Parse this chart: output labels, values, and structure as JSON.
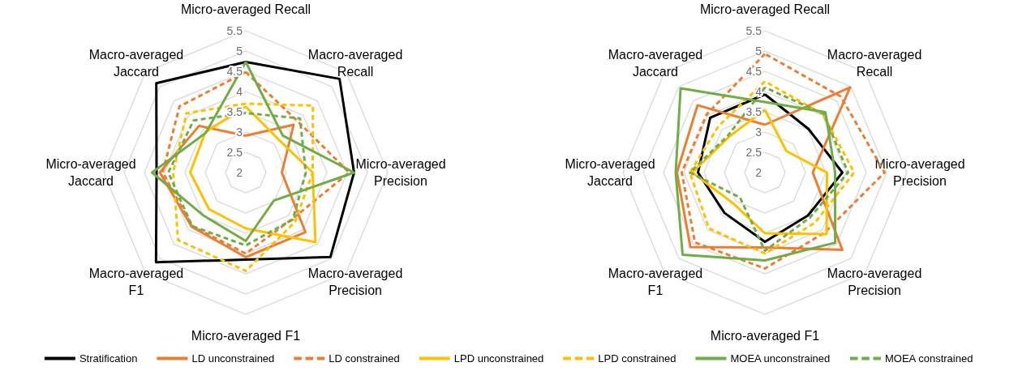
{
  "chart_data": [
    {
      "type": "radar",
      "categories": [
        "Micro-averaged Recall",
        "Macro-averaged Recall",
        "Micro-averaged Precision",
        "Macro-averaged Precision",
        "Micro-averaged F1",
        "Macro-averaged F1",
        "Micro-averaged Jaccard",
        "Macro-averaged Jaccard"
      ],
      "ylim": [
        2,
        5.5
      ],
      "yticks": [
        2,
        2.5,
        3,
        3.5,
        4,
        4.5,
        5,
        5.5
      ],
      "grid": true,
      "legend": "bottom",
      "marker": "none",
      "series": [
        {
          "name": "Stratification",
          "color": "#000000",
          "line_style": "solid",
          "values": [
            4.73,
            5.27,
            4.67,
            4.95,
            4.15,
            5.13,
            4.2,
            5.12
          ]
        },
        {
          "name": "LD unconstrained",
          "color": "#ed7d31",
          "line_style": "solid",
          "values": [
            2.91,
            3.67,
            2.89,
            4.08,
            4.09,
            3.89,
            4.12,
            3.63
          ]
        },
        {
          "name": "LD constrained",
          "color": "#ed7d31",
          "line_style": "dashed",
          "values": [
            4.48,
            3.8,
            4.55,
            3.62,
            4.0,
            3.87,
            4.05,
            4.31
          ]
        },
        {
          "name": "LPD unconstrained",
          "color": "#ffc000",
          "line_style": "solid",
          "values": [
            3.63,
            3.15,
            3.65,
            4.43,
            3.38,
            3.28,
            3.37,
            3.41
          ]
        },
        {
          "name": "LPD constrained",
          "color": "#ffc000",
          "line_style": "dashed",
          "values": [
            3.7,
            4.34,
            3.65,
            3.72,
            4.43,
            4.36,
            3.79,
            4.07
          ]
        },
        {
          "name": "MOEA unconstrained",
          "color": "#70ad47",
          "line_style": "solid",
          "values": [
            4.73,
            3.29,
            4.67,
            2.98,
            3.69,
            3.49,
            4.31,
            3.39
          ]
        },
        {
          "name": "MOEA constrained",
          "color": "#70ad47",
          "line_style": "dashed",
          "values": [
            3.47,
            3.89,
            3.48,
            3.64,
            3.8,
            3.87,
            3.91,
            3.82
          ]
        }
      ]
    },
    {
      "type": "radar",
      "categories": [
        "Micro-averaged Recall",
        "Macro-averaged Recall",
        "Micro-averaged Precision",
        "Macro-averaged Precision",
        "Micro-averaged F1",
        "Macro-averaged F1",
        "Micro-averaged Jaccard",
        "Macro-averaged Jaccard"
      ],
      "ylim": [
        2,
        5.5
      ],
      "yticks": [
        2,
        2.5,
        3,
        3.5,
        4,
        4.5,
        5,
        5.5
      ],
      "grid": true,
      "legend": "bottom",
      "marker": "none",
      "series": [
        {
          "name": "Stratification",
          "color": "#000000",
          "line_style": "solid",
          "values": [
            3.93,
            3.52,
            3.91,
            3.5,
            3.71,
            3.41,
            3.65,
            3.91
          ]
        },
        {
          "name": "LD unconstrained",
          "color": "#ed7d31",
          "line_style": "solid",
          "values": [
            3.18,
            4.97,
            3.18,
            4.7,
            3.85,
            4.6,
            4.17,
            4.35
          ]
        },
        {
          "name": "LD constrained",
          "color": "#ed7d31",
          "line_style": "dashed",
          "values": [
            4.93,
            4.65,
            4.95,
            4.09,
            4.37,
            4.44,
            4.05,
            4.03
          ]
        },
        {
          "name": "LPD unconstrained",
          "color": "#ffc000",
          "line_style": "solid",
          "values": [
            3.55,
            2.75,
            3.53,
            4.15,
            3.5,
            3.09,
            3.79,
            3.25
          ]
        },
        {
          "name": "LPD constrained",
          "color": "#ffc000",
          "line_style": "dashed",
          "values": [
            4.25,
            4.03,
            4.2,
            3.75,
            4.0,
            3.95,
            3.85,
            3.62
          ]
        },
        {
          "name": "MOEA unconstrained",
          "color": "#70ad47",
          "line_style": "solid",
          "values": [
            3.74,
            4.11,
            3.73,
            4.45,
            4.17,
            4.87,
            4.2,
            4.94
          ]
        },
        {
          "name": "MOEA constrained",
          "color": "#70ad47",
          "line_style": "dashed",
          "values": [
            4.1,
            4.05,
            4.05,
            3.57,
            3.93,
            2.87,
            3.85,
            3.29
          ]
        }
      ]
    }
  ]
}
